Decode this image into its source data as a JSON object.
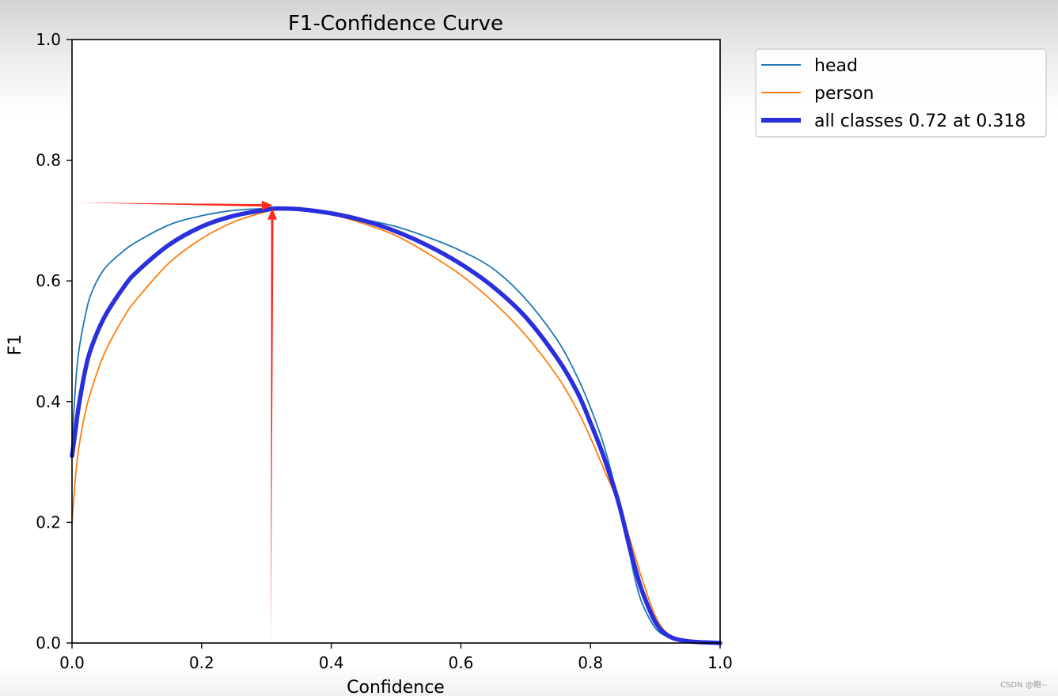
{
  "chart_data": {
    "type": "line",
    "title": "F1-Confidence Curve",
    "xlabel": "Confidence",
    "ylabel": "F1",
    "xlim": [
      0,
      1
    ],
    "ylim": [
      0,
      1
    ],
    "xticks": [
      "0.0",
      "0.2",
      "0.4",
      "0.6",
      "0.8",
      "1.0"
    ],
    "yticks": [
      "0.0",
      "0.2",
      "0.4",
      "0.6",
      "0.8",
      "1.0"
    ],
    "grid": false,
    "legend_position": "outside-top-right",
    "series": [
      {
        "name": "head",
        "color": "#1f77b4",
        "width": "thin",
        "x": [
          0,
          0.005,
          0.01,
          0.02,
          0.03,
          0.05,
          0.08,
          0.1,
          0.15,
          0.2,
          0.25,
          0.3,
          0.318,
          0.35,
          0.4,
          0.45,
          0.5,
          0.55,
          0.6,
          0.65,
          0.7,
          0.75,
          0.78,
          0.8,
          0.82,
          0.84,
          0.85,
          0.86,
          0.87,
          0.88,
          0.9,
          0.92,
          0.95,
          1.0
        ],
        "y": [
          0.33,
          0.42,
          0.48,
          0.54,
          0.58,
          0.62,
          0.65,
          0.665,
          0.693,
          0.708,
          0.717,
          0.72,
          0.72,
          0.718,
          0.712,
          0.702,
          0.69,
          0.672,
          0.65,
          0.62,
          0.57,
          0.5,
          0.44,
          0.39,
          0.33,
          0.25,
          0.2,
          0.15,
          0.1,
          0.065,
          0.025,
          0.01,
          0.003,
          0.0
        ]
      },
      {
        "name": "person",
        "color": "#ff7f0e",
        "width": "thin",
        "x": [
          0,
          0.005,
          0.01,
          0.02,
          0.03,
          0.05,
          0.08,
          0.1,
          0.15,
          0.2,
          0.25,
          0.3,
          0.318,
          0.35,
          0.4,
          0.45,
          0.5,
          0.55,
          0.6,
          0.65,
          0.7,
          0.75,
          0.78,
          0.8,
          0.82,
          0.84,
          0.85,
          0.86,
          0.87,
          0.88,
          0.9,
          0.92,
          0.95,
          1.0
        ],
        "y": [
          0.2,
          0.27,
          0.32,
          0.38,
          0.42,
          0.48,
          0.54,
          0.57,
          0.63,
          0.67,
          0.698,
          0.715,
          0.72,
          0.718,
          0.71,
          0.695,
          0.675,
          0.645,
          0.61,
          0.565,
          0.51,
          0.44,
          0.385,
          0.34,
          0.29,
          0.24,
          0.21,
          0.175,
          0.14,
          0.105,
          0.045,
          0.015,
          0.004,
          0.0
        ]
      },
      {
        "name": "all classes 0.72 at 0.318",
        "color": "#2a2fdc",
        "width": "thick",
        "x": [
          0,
          0.005,
          0.01,
          0.02,
          0.03,
          0.05,
          0.08,
          0.1,
          0.15,
          0.2,
          0.25,
          0.3,
          0.318,
          0.35,
          0.4,
          0.45,
          0.5,
          0.55,
          0.6,
          0.65,
          0.7,
          0.75,
          0.78,
          0.8,
          0.82,
          0.84,
          0.85,
          0.86,
          0.87,
          0.88,
          0.9,
          0.92,
          0.95,
          1.0
        ],
        "y": [
          0.31,
          0.35,
          0.39,
          0.45,
          0.49,
          0.54,
          0.59,
          0.615,
          0.66,
          0.69,
          0.708,
          0.718,
          0.72,
          0.719,
          0.712,
          0.7,
          0.682,
          0.658,
          0.628,
          0.59,
          0.54,
          0.47,
          0.415,
          0.365,
          0.31,
          0.245,
          0.205,
          0.16,
          0.12,
          0.085,
          0.035,
          0.012,
          0.003,
          0.0
        ]
      }
    ],
    "annotations": [
      {
        "type": "arrow",
        "color": "#ff2a1a",
        "from": [
          0.0,
          0.73
        ],
        "to": [
          0.31,
          0.725
        ]
      },
      {
        "type": "arrow",
        "color": "#ff2a1a",
        "from": [
          0.307,
          0.0
        ],
        "to": [
          0.309,
          0.72
        ]
      }
    ]
  },
  "watermark": "CSDN @鲍--"
}
